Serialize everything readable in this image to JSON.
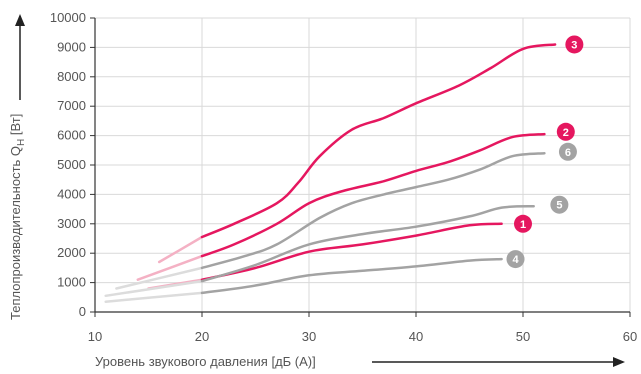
{
  "chart_data": {
    "type": "line",
    "xlabel": "Уровень звукового давления  [дБ (А)]",
    "ylabel_main": "Теплопроизводительность Q",
    "ylabel_sub": "H",
    "ylabel_unit": " [Вт]",
    "xlim": [
      10,
      60
    ],
    "ylim": [
      0,
      10000
    ],
    "x_ticks": [
      "10",
      "20",
      "30",
      "40",
      "50",
      "60"
    ],
    "y_ticks": [
      "0",
      "1000",
      "2000",
      "3000",
      "4000",
      "5000",
      "6000",
      "7000",
      "8000",
      "9000",
      "10000"
    ],
    "grid": true,
    "colors": {
      "pink": "#e5175f",
      "gray": "#a3a3a3",
      "pink_light": "#f4b1c4",
      "gray_light": "#dcdcdc",
      "grid": "#d9d9d9",
      "axis": "#333333"
    },
    "series": [
      {
        "name": "1",
        "color": "pink",
        "faint": [
          [
            15,
            800
          ],
          [
            20,
            1100
          ]
        ],
        "points": [
          [
            20,
            1100
          ],
          [
            25,
            1500
          ],
          [
            30,
            2050
          ],
          [
            35,
            2300
          ],
          [
            40,
            2600
          ],
          [
            45,
            2950
          ],
          [
            48,
            3000
          ]
        ]
      },
      {
        "name": "2",
        "color": "pink",
        "faint": [
          [
            14,
            1100
          ],
          [
            20,
            1900
          ]
        ],
        "points": [
          [
            20,
            1900
          ],
          [
            23,
            2300
          ],
          [
            27,
            3000
          ],
          [
            30,
            3700
          ],
          [
            33,
            4100
          ],
          [
            37,
            4450
          ],
          [
            40,
            4800
          ],
          [
            43,
            5100
          ],
          [
            46,
            5500
          ],
          [
            49,
            5950
          ],
          [
            52,
            6050
          ]
        ]
      },
      {
        "name": "3",
        "color": "pink",
        "faint": [
          [
            16,
            1700
          ],
          [
            20,
            2550
          ]
        ],
        "points": [
          [
            20,
            2550
          ],
          [
            23,
            3000
          ],
          [
            27,
            3700
          ],
          [
            29,
            4400
          ],
          [
            31,
            5300
          ],
          [
            34,
            6200
          ],
          [
            37,
            6600
          ],
          [
            40,
            7100
          ],
          [
            44,
            7700
          ],
          [
            47,
            8300
          ],
          [
            50,
            8950
          ],
          [
            53,
            9100
          ]
        ]
      },
      {
        "name": "4",
        "color": "gray",
        "faint": [
          [
            11,
            350
          ],
          [
            20,
            650
          ]
        ],
        "points": [
          [
            20,
            650
          ],
          [
            25,
            900
          ],
          [
            30,
            1250
          ],
          [
            35,
            1400
          ],
          [
            40,
            1550
          ],
          [
            45,
            1750
          ],
          [
            48,
            1800
          ]
        ]
      },
      {
        "name": "5",
        "color": "gray",
        "faint": [
          [
            11,
            550
          ],
          [
            20,
            1050
          ]
        ],
        "points": [
          [
            20,
            1050
          ],
          [
            25,
            1600
          ],
          [
            30,
            2300
          ],
          [
            35,
            2650
          ],
          [
            40,
            2900
          ],
          [
            45,
            3250
          ],
          [
            48,
            3550
          ],
          [
            51,
            3600
          ]
        ]
      },
      {
        "name": "6",
        "color": "gray",
        "faint": [
          [
            12,
            800
          ],
          [
            20,
            1500
          ]
        ],
        "points": [
          [
            20,
            1500
          ],
          [
            24,
            1900
          ],
          [
            27,
            2300
          ],
          [
            31,
            3200
          ],
          [
            34,
            3700
          ],
          [
            37,
            4000
          ],
          [
            40,
            4250
          ],
          [
            43,
            4500
          ],
          [
            46,
            4850
          ],
          [
            49,
            5300
          ],
          [
            52,
            5400
          ]
        ]
      }
    ],
    "markers": [
      {
        "label": "1",
        "x": 50.0,
        "y": 3000,
        "color": "pink"
      },
      {
        "label": "2",
        "x": 54.0,
        "y": 6130,
        "color": "pink"
      },
      {
        "label": "3",
        "x": 54.8,
        "y": 9100,
        "color": "pink"
      },
      {
        "label": "4",
        "x": 49.3,
        "y": 1800,
        "color": "gray"
      },
      {
        "label": "5",
        "x": 53.4,
        "y": 3650,
        "color": "gray"
      },
      {
        "label": "6",
        "x": 54.2,
        "y": 5450,
        "color": "gray"
      }
    ]
  }
}
